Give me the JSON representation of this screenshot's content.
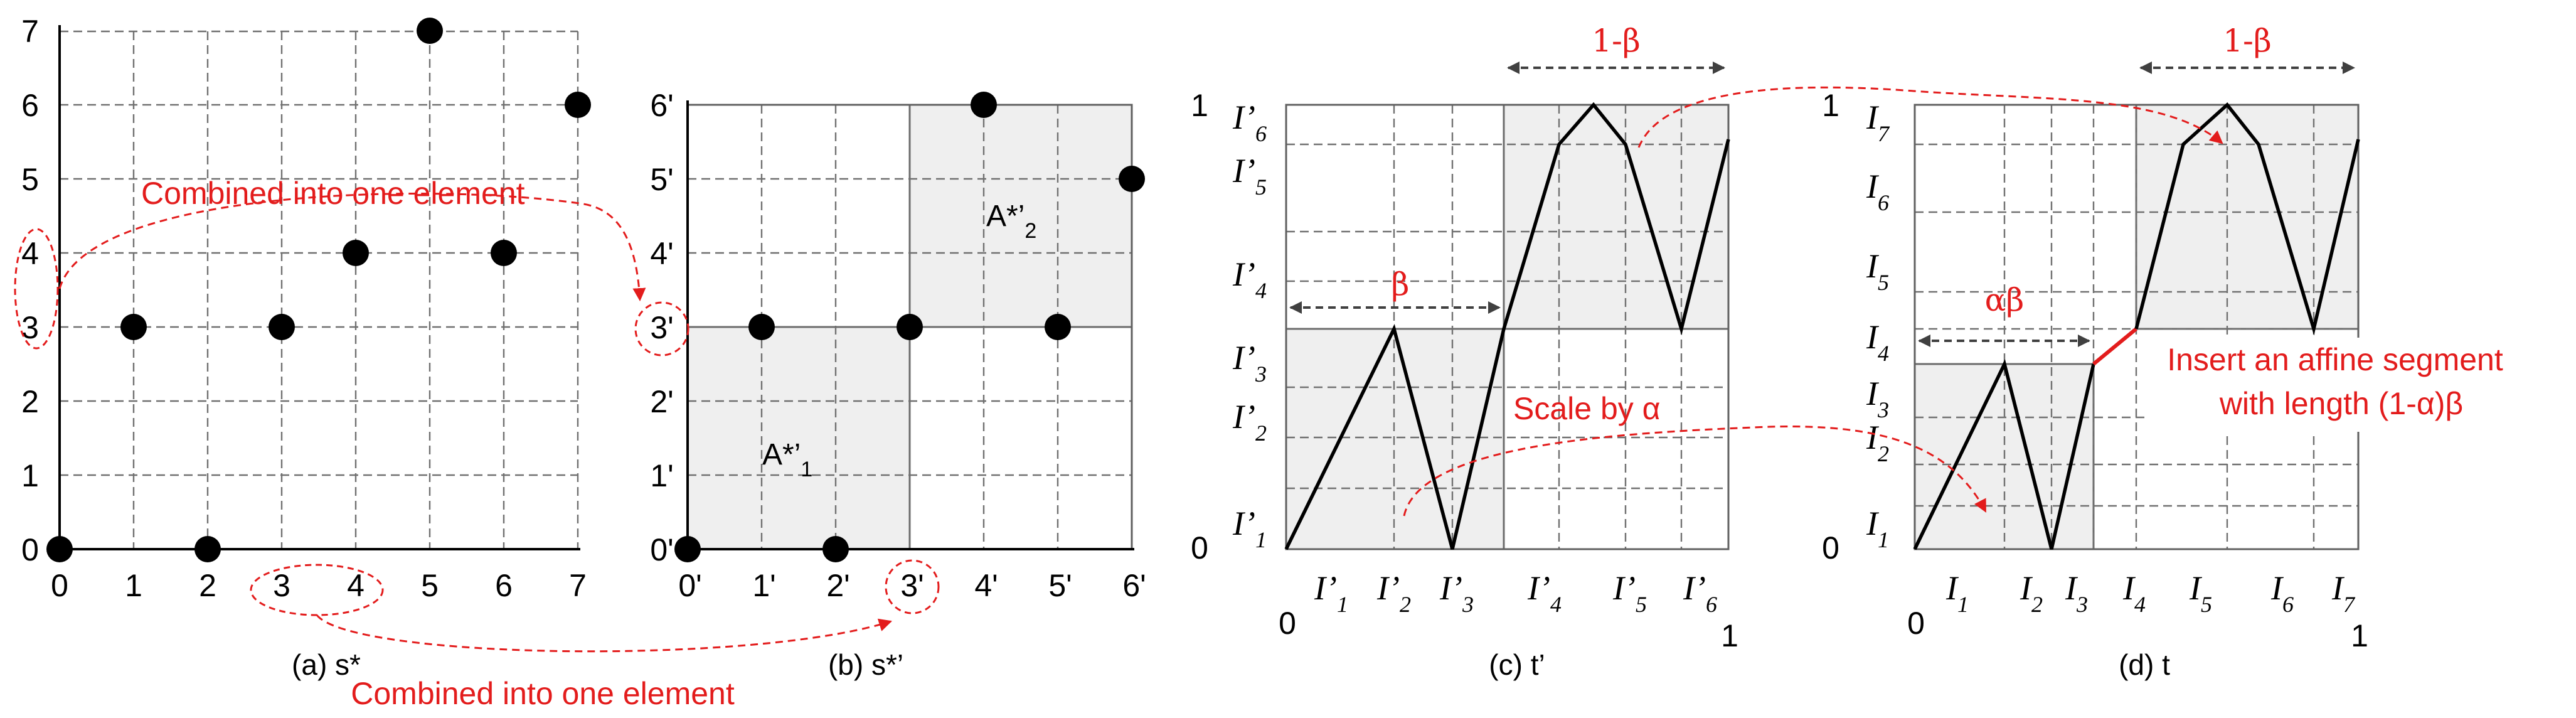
{
  "colors": {
    "annotation": "#e31c1c",
    "shade": "#efefef",
    "grid": "#707070",
    "curve": "#000000"
  },
  "panel_a": {
    "caption": "(a) s*",
    "x_ticks": [
      "0",
      "1",
      "2",
      "3",
      "4",
      "5",
      "6",
      "7"
    ],
    "y_ticks": [
      "0",
      "1",
      "2",
      "3",
      "4",
      "5",
      "6",
      "7"
    ],
    "points": [
      [
        0,
        0
      ],
      [
        1,
        3
      ],
      [
        2,
        0
      ],
      [
        3,
        3
      ],
      [
        4,
        4
      ],
      [
        5,
        7
      ],
      [
        6,
        4
      ],
      [
        7,
        6
      ]
    ],
    "annotation": "Combined into one element"
  },
  "panel_b": {
    "caption": "(b) s*’",
    "x_ticks": [
      "0'",
      "1'",
      "2'",
      "3'",
      "4'",
      "5'",
      "6'"
    ],
    "y_ticks": [
      "0'",
      "1'",
      "2'",
      "3'",
      "4'",
      "5'",
      "6'"
    ],
    "points": [
      [
        0,
        0
      ],
      [
        1,
        3
      ],
      [
        2,
        0
      ],
      [
        3,
        3
      ],
      [
        4,
        6
      ],
      [
        5,
        3
      ],
      [
        6,
        5
      ]
    ],
    "region_1": {
      "base": "A*’",
      "sub": "1"
    },
    "region_2": {
      "base": "A*’",
      "sub": "2"
    },
    "annotation": "Combined into one element"
  },
  "panel_c": {
    "caption": "(c) t’",
    "origin": "0",
    "x_end": "1",
    "y_top": "1",
    "y_zero": "0",
    "x_labels": [
      {
        "base": "I’",
        "sub": "1"
      },
      {
        "base": "I’",
        "sub": "2"
      },
      {
        "base": "I’",
        "sub": "3"
      },
      {
        "base": "I’",
        "sub": "4"
      },
      {
        "base": "I’",
        "sub": "5"
      },
      {
        "base": "I’",
        "sub": "6"
      }
    ],
    "y_labels": [
      {
        "base": "I’",
        "sub": "1"
      },
      {
        "base": "I’",
        "sub": "2"
      },
      {
        "base": "I’",
        "sub": "3"
      },
      {
        "base": "I’",
        "sub": "4"
      },
      {
        "base": "I’",
        "sub": "5"
      },
      {
        "base": "I’",
        "sub": "6"
      }
    ],
    "beta": "β",
    "one_minus_beta": "1-β",
    "scale_note": "Scale by α"
  },
  "panel_d": {
    "caption": "(d) t",
    "origin": "0",
    "x_end": "1",
    "y_top": "1",
    "y_zero": "0",
    "x_labels": [
      {
        "base": "I",
        "sub": "1"
      },
      {
        "base": "I",
        "sub": "2"
      },
      {
        "base": "I",
        "sub": "3"
      },
      {
        "base": "I",
        "sub": "4"
      },
      {
        "base": "I",
        "sub": "5"
      },
      {
        "base": "I",
        "sub": "6"
      },
      {
        "base": "I",
        "sub": "7"
      }
    ],
    "y_labels": [
      {
        "base": "I",
        "sub": "1"
      },
      {
        "base": "I",
        "sub": "2"
      },
      {
        "base": "I",
        "sub": "3"
      },
      {
        "base": "I",
        "sub": "4"
      },
      {
        "base": "I",
        "sub": "5"
      },
      {
        "base": "I",
        "sub": "6"
      },
      {
        "base": "I",
        "sub": "7"
      }
    ],
    "alpha_beta": "αβ",
    "one_minus_beta": "1-β",
    "insert_note_line1": "Insert an affine segment",
    "insert_note_line2": "with length (1-α)β"
  }
}
